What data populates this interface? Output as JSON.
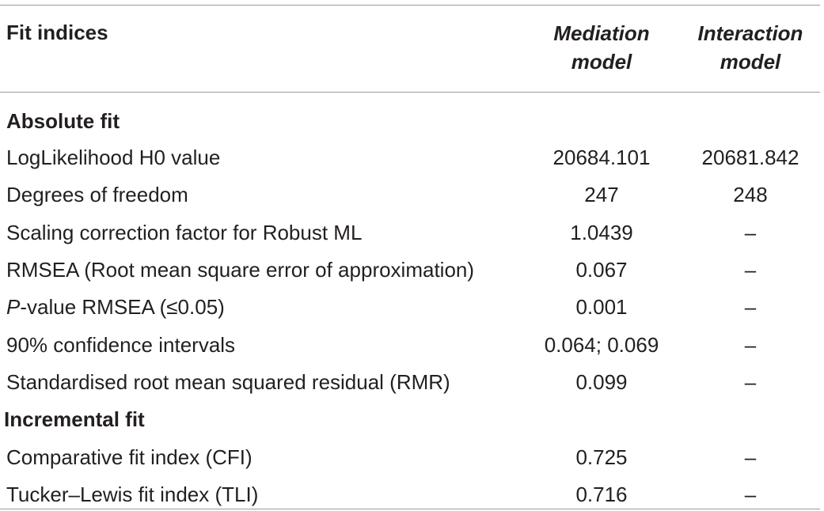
{
  "header": {
    "fit_indices": "Fit indices",
    "mediation_line1": "Mediation",
    "mediation_line2": "model",
    "interaction_line1": "Interaction",
    "interaction_line2": "model"
  },
  "sections": {
    "absolute_fit": "Absolute fit",
    "incremental_fit": "Incremental fit"
  },
  "rows": [
    {
      "label": "LogLikelihood H0 value",
      "mediation": "20684.101",
      "interaction": "20681.842"
    },
    {
      "label": "Degrees of freedom",
      "mediation": "247",
      "interaction": "248"
    },
    {
      "label": "Scaling correction factor for Robust ML",
      "mediation": "1.0439",
      "interaction": "–"
    },
    {
      "label": "RMSEA (Root mean square error of approximation)",
      "mediation": "0.067",
      "interaction": "–"
    },
    {
      "label_prefix": "P",
      "label_rest": "-value RMSEA (≤0.05)",
      "mediation": "0.001",
      "interaction": "–"
    },
    {
      "label": "90% confidence intervals",
      "mediation": "0.064; 0.069",
      "interaction": "–"
    },
    {
      "label": "Standardised root mean squared residual (RMR)",
      "mediation": "0.099",
      "interaction": "–"
    },
    {
      "label": "Comparative fit index (CFI)",
      "mediation": "0.725",
      "interaction": "–"
    },
    {
      "label": "Tucker–Lewis fit index (TLI)",
      "mediation": "0.716",
      "interaction": "–"
    }
  ]
}
